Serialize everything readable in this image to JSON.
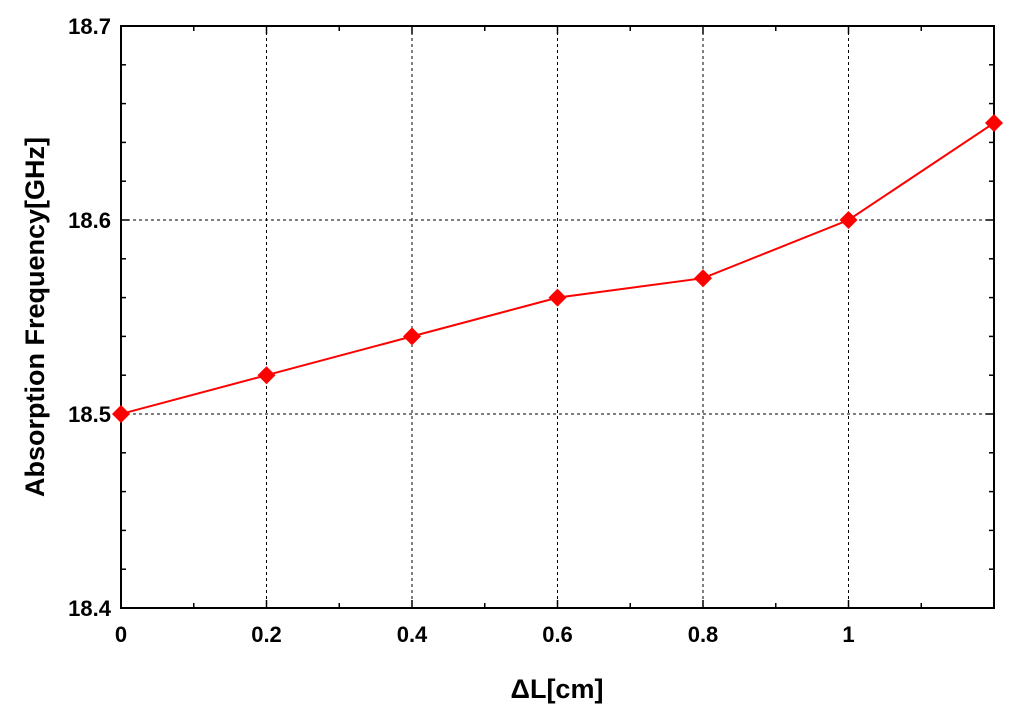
{
  "chart_data": {
    "type": "line",
    "title": "",
    "xlabel": "ΔL[cm]",
    "ylabel": "Absorption Frequency[GHz]",
    "xlim": [
      0,
      1.2
    ],
    "ylim": [
      18.4,
      18.7
    ],
    "x_ticks": [
      0,
      0.2,
      0.4,
      0.6,
      0.8,
      1
    ],
    "x_tick_labels": [
      "0",
      "0.2",
      "0.4",
      "0.6",
      "0.8",
      "1"
    ],
    "y_ticks": [
      18.4,
      18.5,
      18.6,
      18.7
    ],
    "y_tick_labels": [
      "18.4",
      "18.5",
      "18.6",
      "18.7"
    ],
    "y_minor_step": 0.02,
    "x_minor_step": 0.1,
    "grid": true,
    "legend": "none",
    "series": [
      {
        "color": "#ff0000",
        "marker": "diamond",
        "x": [
          0,
          0.2,
          0.4,
          0.6,
          0.8,
          1.0,
          1.2
        ],
        "y": [
          18.5,
          18.52,
          18.54,
          18.56,
          18.57,
          18.6,
          18.65
        ]
      }
    ]
  }
}
